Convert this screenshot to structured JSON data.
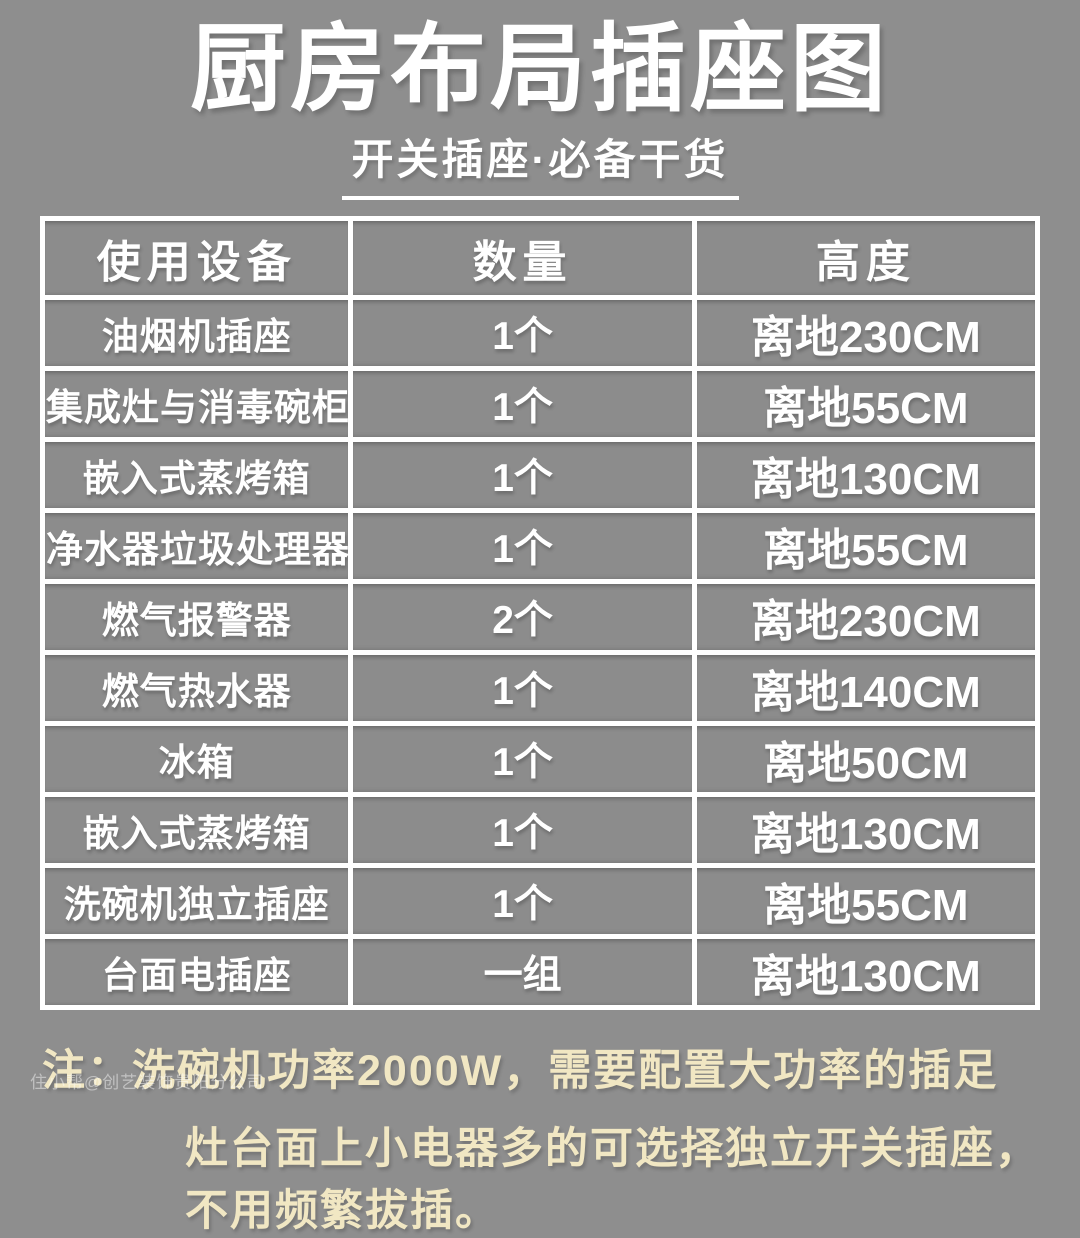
{
  "header": {
    "title": "厨房布局插座图",
    "subtitle": "开关插座·必备干货"
  },
  "table": {
    "headers": [
      "使用设备",
      "数量",
      "高度"
    ],
    "rows": [
      {
        "device": "油烟机插座",
        "qty": "1个",
        "height": "离地230CM"
      },
      {
        "device": "集成灶与消毒碗柜",
        "qty": "1个",
        "height": "离地55CM"
      },
      {
        "device": "嵌入式蒸烤箱",
        "qty": "1个",
        "height": "离地130CM"
      },
      {
        "device": "净水器垃圾处理器",
        "qty": "1个",
        "height": "离地55CM"
      },
      {
        "device": "燃气报警器",
        "qty": "2个",
        "height": "离地230CM"
      },
      {
        "device": "燃气热水器",
        "qty": "1个",
        "height": "离地140CM"
      },
      {
        "device": "冰箱",
        "qty": "1个",
        "height": "离地50CM"
      },
      {
        "device": "嵌入式蒸烤箱",
        "qty": "1个",
        "height": "离地130CM"
      },
      {
        "device": "洗碗机独立插座",
        "qty": "1个",
        "height": "离地55CM"
      },
      {
        "device": "台面电插座",
        "qty": "一组",
        "height": "离地130CM"
      }
    ]
  },
  "note": {
    "line1": "注：洗碗机功率2000W，需要配置大功率的插足",
    "line2": "灶台面上小电器多的可选择独立开关插座，不用频繁拔插。"
  },
  "watermark": "住小帮@创艺装饰贵阳分公司",
  "colors": {
    "background": "#8e8e8e",
    "table_border": "#ffffff",
    "table_text": "#ffffff",
    "note_text": "#f1e7c3"
  },
  "chart_data": {
    "type": "table",
    "title": "厨房布局插座图",
    "subtitle": "开关插座·必备干货",
    "columns": [
      "使用设备",
      "数量",
      "高度"
    ],
    "rows": [
      [
        "油烟机插座",
        "1个",
        "离地230CM"
      ],
      [
        "集成灶与消毒碗柜",
        "1个",
        "离地55CM"
      ],
      [
        "嵌入式蒸烤箱",
        "1个",
        "离地130CM"
      ],
      [
        "净水器垃圾处理器",
        "1个",
        "离地55CM"
      ],
      [
        "燃气报警器",
        "2个",
        "离地230CM"
      ],
      [
        "燃气热水器",
        "1个",
        "离地140CM"
      ],
      [
        "冰箱",
        "1个",
        "离地50CM"
      ],
      [
        "嵌入式蒸烤箱",
        "1个",
        "离地130CM"
      ],
      [
        "洗碗机独立插座",
        "1个",
        "离地55CM"
      ],
      [
        "台面电插座",
        "一组",
        "离地130CM"
      ]
    ],
    "annotations": [
      "注：洗碗机功率2000W，需要配置大功率的插足",
      "灶台面上小电器多的可选择独立开关插座，不用频繁拔插。"
    ]
  }
}
